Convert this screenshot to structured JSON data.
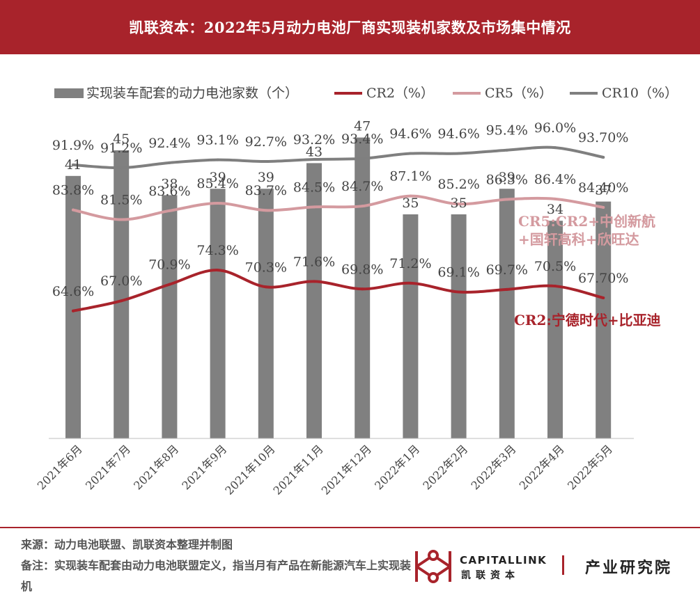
{
  "header": {
    "title": "凯联资本：2022年5月动力电池厂商实现装机家数及市场集中情况"
  },
  "chart_data": {
    "type": "bar+line",
    "categories": [
      "2021年6月",
      "2021年7月",
      "2021年8月",
      "2021年9月",
      "2021年10月",
      "2021年11月",
      "2021年12月",
      "2022年1月",
      "2022年2月",
      "2022年3月",
      "2022年4月",
      "2022年5月"
    ],
    "bars": {
      "name": "实现装车配套的动力电池家数（个）",
      "values": [
        41,
        45,
        38,
        39,
        39,
        43,
        47,
        35,
        35,
        39,
        34,
        37
      ],
      "labels": [
        "41",
        "45",
        "38",
        "39",
        "39",
        "43",
        "47",
        "35",
        "35",
        "39",
        "34",
        "37"
      ],
      "color": "#808080"
    },
    "series": [
      {
        "name": "CR2（%）",
        "values": [
          64.6,
          67.0,
          70.9,
          74.3,
          70.3,
          71.6,
          69.8,
          71.2,
          69.1,
          69.7,
          70.5,
          67.7
        ],
        "labels": [
          "64.6%",
          "67.0%",
          "70.9%",
          "74.3%",
          "70.3%",
          "71.6%",
          "69.8%",
          "71.2%",
          "69.1%",
          "69.7%",
          "70.5%",
          "67.70%"
        ],
        "color": "#a8232b"
      },
      {
        "name": "CR5（%）",
        "values": [
          83.8,
          81.5,
          83.6,
          85.4,
          83.7,
          84.5,
          84.7,
          87.1,
          85.2,
          86.3,
          86.4,
          84.4
        ],
        "labels": [
          "83.8%",
          "81.5%",
          "83.6%",
          "85.4%",
          "83.7%",
          "84.5%",
          "84.7%",
          "87.1%",
          "85.2%",
          "86.3%",
          "86.4%",
          "84.40%"
        ],
        "color": "#d49a9f"
      },
      {
        "name": "CR10（%）",
        "values": [
          91.9,
          91.2,
          92.4,
          93.1,
          92.7,
          93.2,
          93.4,
          94.6,
          94.6,
          95.4,
          96.0,
          93.7
        ],
        "labels": [
          "91.9%",
          "91.2%",
          "92.4%",
          "93.1%",
          "92.7%",
          "93.2%",
          "93.4%",
          "94.6%",
          "94.6%",
          "95.4%",
          "96.0%",
          "93.70%"
        ],
        "color": "#7f7f7f"
      }
    ],
    "annotations": {
      "cr5_line1": "CR5:CR2+中创新航",
      "cr5_line2": "+国轩高科+欣旺达",
      "cr2": "CR2:宁德时代+比亚迪"
    },
    "legend_position": "top",
    "grid": false
  },
  "footer": {
    "source": "来源：动力电池联盟、凯联资本整理并制图",
    "note": "备注：实现装车配套由动力电池联盟定义，指当月有产品在新能源汽车上实现装机"
  },
  "logo": {
    "english": "CAPITALLINK",
    "chinese": "凯联资本",
    "institute": "产业研究院",
    "brand_color": "#a8232b"
  }
}
